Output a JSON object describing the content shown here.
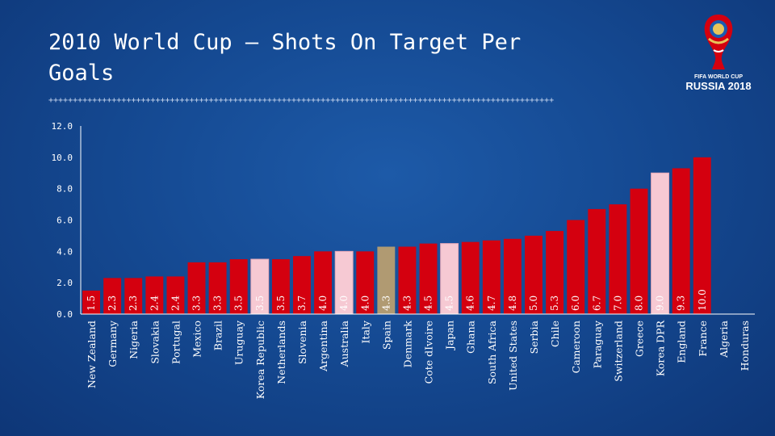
{
  "slide": {
    "title": "2010 World Cup – Shots On Target Per Goals",
    "divider": "++++++++++++++++++++++++++++++++++++++++++++++++++++++++++++++++++++++++++++++++++++++++++++++++++++++++",
    "logo": {
      "line1": "FIFA WORLD CUP",
      "line2": "RUSSIA 2018"
    }
  },
  "colors": {
    "bar_default": "#d4000f",
    "bar_pink": "#f6c9d3",
    "bar_gold": "#b09a72",
    "axis": "#ffffff"
  },
  "chart_data": {
    "type": "bar",
    "title": "2010 World Cup – Shots On Target Per Goals",
    "xlabel": "",
    "ylabel": "",
    "ylim": [
      0,
      12
    ],
    "yticks": [
      "0.0",
      "2.0",
      "4.0",
      "6.0",
      "8.0",
      "10.0",
      "12.0"
    ],
    "grid": false,
    "categories": [
      "New Zealand",
      "Germany",
      "Nigeria",
      "Slovakia",
      "Portugal",
      "Mexico",
      "Brazil",
      "Uruguay",
      "Korea Republic",
      "Netherlands",
      "Slovenia",
      "Argentina",
      "Australia",
      "Italy",
      "Spain",
      "Denmark",
      "Cote dIvoire",
      "Japan",
      "Ghana",
      "South Africa",
      "United States",
      "Serbia",
      "Chile",
      "Cameroon",
      "Paraguay",
      "Switzerland",
      "Greece",
      "Korea DPR",
      "England",
      "France",
      "Algeria",
      "Honduras"
    ],
    "values": [
      1.5,
      2.3,
      2.3,
      2.4,
      2.4,
      3.3,
      3.3,
      3.5,
      3.5,
      3.5,
      3.7,
      4.0,
      4.0,
      4.0,
      4.3,
      4.3,
      4.5,
      4.5,
      4.6,
      4.7,
      4.8,
      5.0,
      5.3,
      6.0,
      6.7,
      7.0,
      8.0,
      9.0,
      9.3,
      10.0,
      null,
      null
    ],
    "labels": [
      "1.5",
      "2.3",
      "2.3",
      "2.4",
      "2.4",
      "3.3",
      "3.3",
      "3.5",
      "3.5",
      "3.5",
      "3.7",
      "4.0",
      "4.0",
      "4.0",
      "4.3",
      "4.3",
      "4.5",
      "4.5",
      "4.6",
      "4.7",
      "4.8",
      "5.0",
      "5.3",
      "6.0",
      "6.7",
      "7.0",
      "8.0",
      "9.0",
      "9.3",
      "10.0",
      "",
      ""
    ],
    "highlights": {
      "Korea Republic": "pink",
      "Australia": "pink",
      "Japan": "pink",
      "Korea DPR": "pink",
      "Spain": "gold"
    }
  }
}
